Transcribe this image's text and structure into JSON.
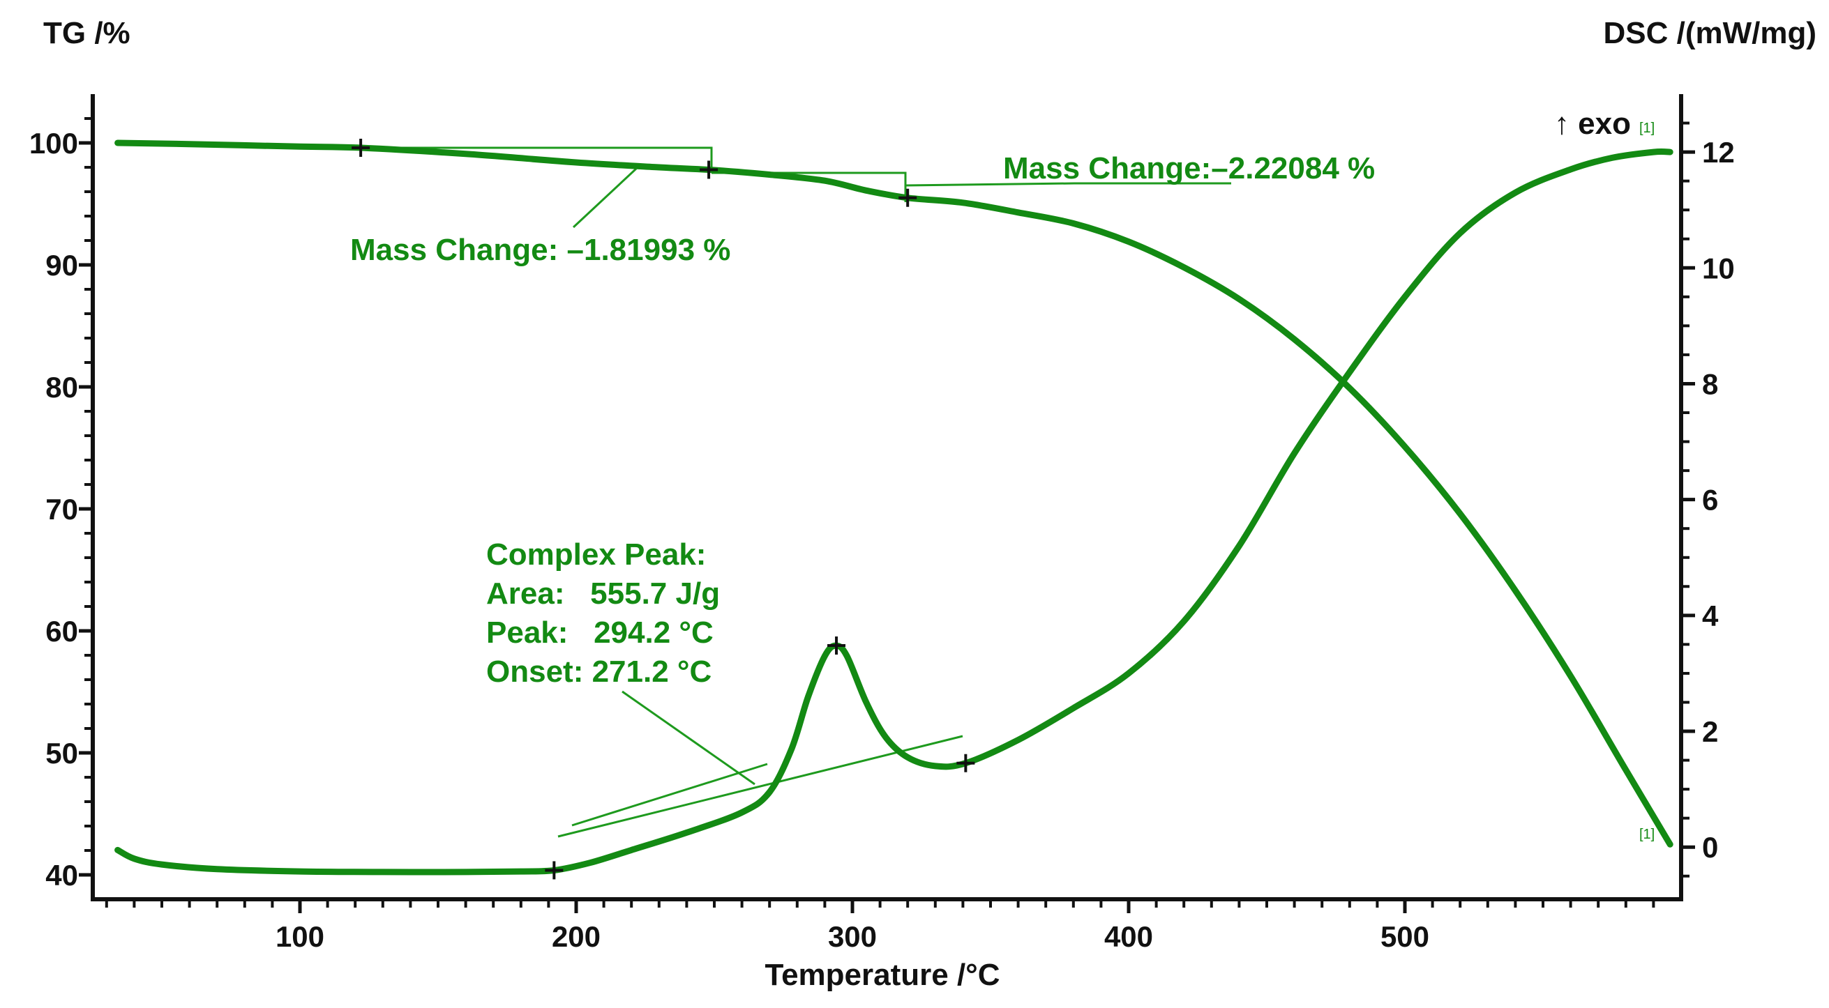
{
  "chart_data": {
    "type": "line",
    "title": "",
    "xlabel": "Temperature /°C",
    "ylabel_left": "TG /%",
    "ylabel_right": "DSC /(mW/mg)",
    "exo_label": "↑ exo",
    "curve_tag_start": "[1]",
    "curve_tag_end": "[1]",
    "xlim": [
      25,
      600
    ],
    "ylim_left": [
      38,
      104
    ],
    "ylim_right": [
      -0.9,
      13.0
    ],
    "x_ticks": [
      100,
      200,
      300,
      400,
      500
    ],
    "y_left_ticks": [
      40,
      50,
      60,
      70,
      80,
      90,
      100
    ],
    "y_right_ticks": [
      0,
      2,
      4,
      6,
      8,
      10,
      12
    ],
    "colors": {
      "curve": "#138a13",
      "annotation": "#138a13",
      "axis": "#111111"
    },
    "series": [
      {
        "name": "TG",
        "axis": "left",
        "x": [
          34,
          60,
          100,
          122,
          160,
          200,
          230,
          248,
          270,
          290,
          305,
          320,
          340,
          360,
          380,
          400,
          420,
          440,
          460,
          480,
          500,
          520,
          540,
          560,
          580,
          596
        ],
        "y": [
          100.0,
          99.9,
          99.7,
          99.6,
          99.1,
          98.4,
          98.0,
          97.8,
          97.4,
          96.9,
          96.1,
          95.5,
          95.1,
          94.3,
          93.4,
          91.9,
          89.8,
          87.2,
          83.9,
          79.9,
          75.1,
          69.6,
          63.3,
          56.3,
          48.6,
          42.5
        ]
      },
      {
        "name": "DSC",
        "axis": "right",
        "x": [
          34,
          40,
          50,
          70,
          100,
          130,
          160,
          180,
          192,
          205,
          220,
          240,
          260,
          270,
          278,
          284,
          290,
          294,
          298,
          305,
          312,
          320,
          330,
          341,
          360,
          380,
          400,
          420,
          440,
          460,
          480,
          500,
          520,
          540,
          560,
          575,
          590,
          596
        ],
        "y": [
          -0.05,
          -0.2,
          -0.3,
          -0.38,
          -0.42,
          -0.43,
          -0.43,
          -0.42,
          -0.4,
          -0.27,
          -0.05,
          0.25,
          0.6,
          0.95,
          1.7,
          2.6,
          3.3,
          3.48,
          3.3,
          2.5,
          1.9,
          1.55,
          1.4,
          1.45,
          1.85,
          2.4,
          3.0,
          3.9,
          5.2,
          6.8,
          8.2,
          9.5,
          10.6,
          11.3,
          11.7,
          11.9,
          12.0,
          12.0
        ]
      }
    ],
    "markers": [
      {
        "series": "TG",
        "x": 122,
        "y": 99.6
      },
      {
        "series": "TG",
        "x": 248,
        "y": 97.8
      },
      {
        "series": "TG",
        "x": 320,
        "y": 95.5
      },
      {
        "series": "DSC",
        "x": 192,
        "y": -0.4
      },
      {
        "series": "DSC",
        "x": 294.2,
        "y": 3.48
      },
      {
        "series": "DSC",
        "x": 341,
        "y": 1.45
      }
    ],
    "annotations": {
      "mass_change_1": "Mass Change: –1.81993 %",
      "mass_change_2": "Mass Change:–2.22084 %",
      "complex_peak": {
        "title": "Complex Peak:",
        "area": "Area:   555.7 J/g",
        "peak": "Peak:   294.2 °C",
        "onset": "Onset: 271.2 °C"
      }
    }
  }
}
